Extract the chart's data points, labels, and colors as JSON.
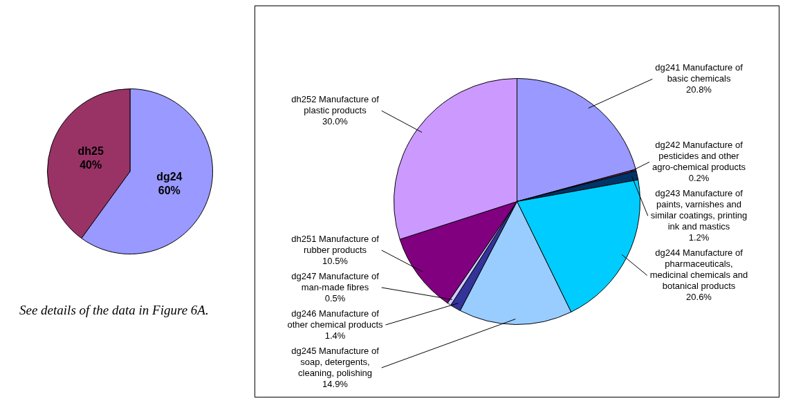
{
  "chart_data": [
    {
      "type": "pie",
      "categories": [
        "dg24",
        "dh25"
      ],
      "values": [
        60,
        40
      ],
      "colors": [
        "#9999ff",
        "#993366"
      ],
      "value_labels": [
        "60%",
        "40%"
      ],
      "annotations": [
        "See details of the data in Figure 6A."
      ]
    },
    {
      "type": "pie",
      "categories": [
        "dg241 Manufacture of basic chemicals",
        "dg242 Manufacture of pesticides and other agro-chemical products",
        "dg243 Manufacture of paints, varnishes and similar coatings, printing ink and mastics",
        "dg244 Manufacture of pharmaceuticals, medicinal chemicals and botanical products",
        "dg245 Manufacture of soap, detergents, cleaning, polishing",
        "dg246 Manufacture of other chemical products",
        "dg247 Manufacture of man-made fibres",
        "dh251 Manufacture of rubber products",
        "dh252 Manufacture of plastic products"
      ],
      "values": [
        20.8,
        0.2,
        1.2,
        20.6,
        14.9,
        1.4,
        0.5,
        10.5,
        30.0
      ],
      "colors": [
        "#9999ff",
        "#993366",
        "#003366",
        "#00ccff",
        "#99ccff",
        "#333399",
        "#ccccff",
        "#800080",
        "#cc99ff"
      ],
      "value_labels": [
        "20.8%",
        "0.2%",
        "1.2%",
        "20.6%",
        "14.9%",
        "1.4%",
        "0.5%",
        "10.5%",
        "30.0%"
      ]
    }
  ]
}
